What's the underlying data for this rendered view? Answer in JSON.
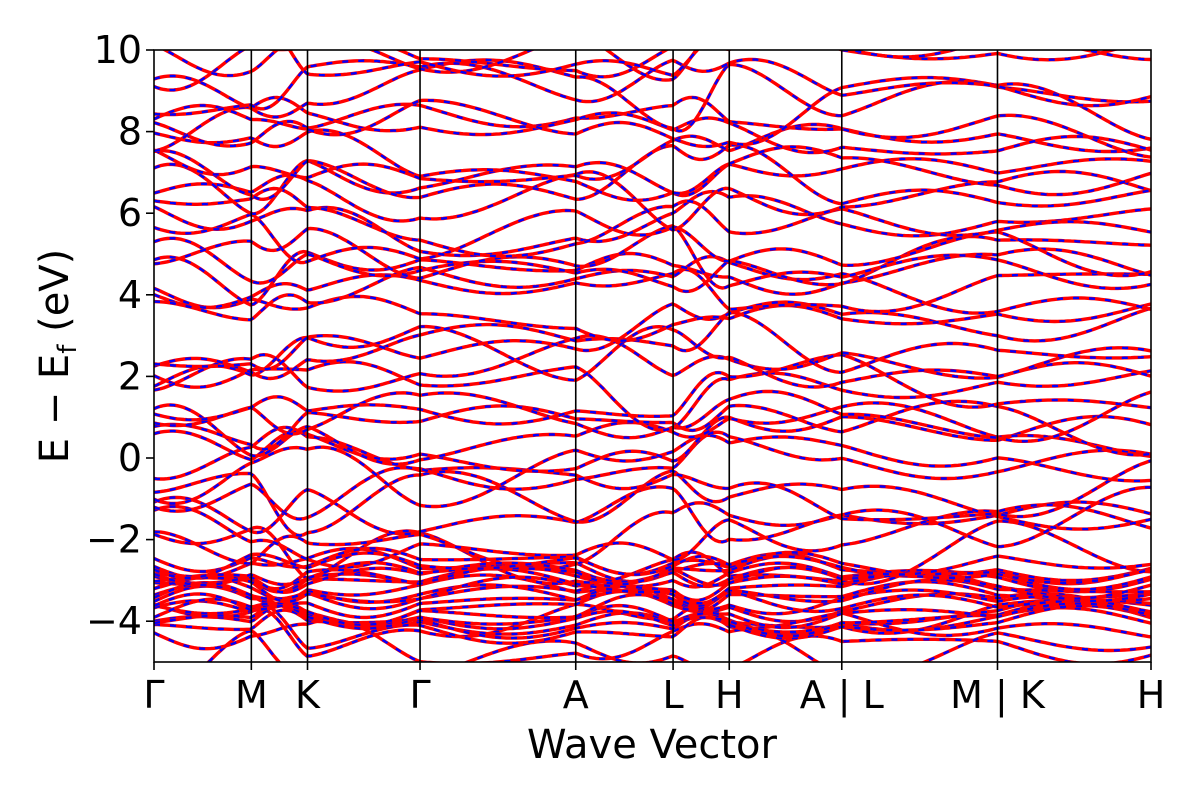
{
  "chart_data": {
    "type": "line",
    "title": "",
    "xlabel": "Wave Vector",
    "ylabel_main": "E − E",
    "ylabel_sub": "f",
    "ylabel_unit": " (eV)",
    "ylim": [
      -5,
      10
    ],
    "yticks": [
      -4,
      -2,
      0,
      2,
      4,
      6,
      8,
      10
    ],
    "ytick_labels": [
      "−4",
      "−2",
      "0",
      "2",
      "4",
      "6",
      "8",
      "10"
    ],
    "kpath": [
      {
        "label": "Γ",
        "k": 0.0
      },
      {
        "label": "M",
        "k": 0.577
      },
      {
        "label": "K",
        "k": 0.91
      },
      {
        "label": "Γ",
        "k": 1.577
      },
      {
        "label": "A",
        "k": 2.5
      },
      {
        "label": "L",
        "k": 3.077
      },
      {
        "label": "H",
        "k": 3.41
      },
      {
        "label": "A | L",
        "k": 4.077
      },
      {
        "label": "M | K",
        "k": 5.0
      },
      {
        "label": "H",
        "k": 5.91
      }
    ],
    "xlim": [
      0,
      5.91
    ],
    "series_styles": [
      {
        "color": "#ff0000",
        "style": "solid"
      },
      {
        "color": "#0000ff",
        "style": "dashed"
      }
    ],
    "grid": false,
    "dense_region": [
      -4.2,
      -2.4
    ]
  }
}
